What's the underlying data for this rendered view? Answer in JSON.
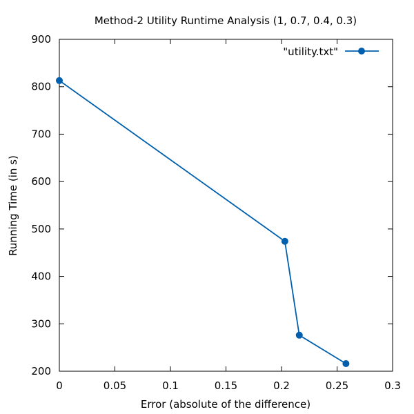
{
  "chart_data": {
    "type": "line",
    "title": "Method-2 Utility Runtime Analysis (1, 0.7, 0.4, 0.3)",
    "xlabel": "Error (absolute of the difference)",
    "ylabel": "Running Time (in s)",
    "xlim": [
      0,
      0.3
    ],
    "ylim": [
      200,
      900
    ],
    "xticks": [
      0,
      0.05,
      0.1,
      0.15,
      0.2,
      0.25,
      0.3
    ],
    "xtick_labels": [
      "0",
      "0.05",
      "0.1",
      "0.15",
      "0.2",
      "0.25",
      "0.3"
    ],
    "yticks": [
      200,
      300,
      400,
      500,
      600,
      700,
      800,
      900
    ],
    "ytick_labels": [
      "200",
      "300",
      "400",
      "500",
      "600",
      "700",
      "800",
      "900"
    ],
    "grid": false,
    "legend_position": "top-right",
    "series": [
      {
        "name": "\"utility.txt\"",
        "color": "#0060ad",
        "marker": "circle",
        "points": [
          {
            "x": 0.0,
            "y": 813
          },
          {
            "x": 0.203,
            "y": 474
          },
          {
            "x": 0.216,
            "y": 276
          },
          {
            "x": 0.258,
            "y": 216
          }
        ]
      }
    ]
  }
}
